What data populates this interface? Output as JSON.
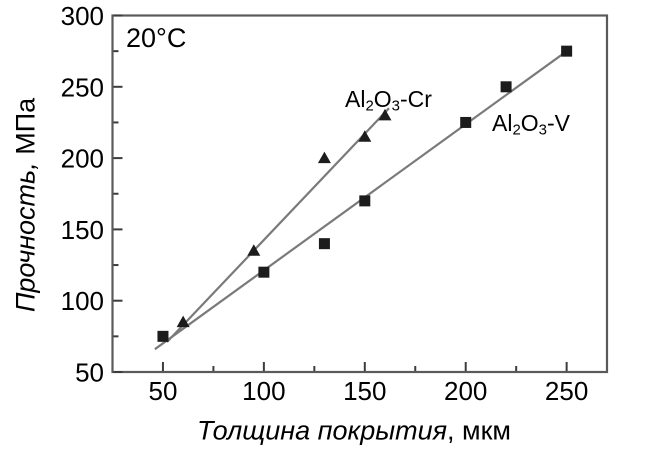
{
  "chart_data": {
    "type": "scatter",
    "title": "",
    "annotation": "20°C",
    "xlabel": "Толщина покрытия, мкм",
    "xlabel_main": "Толщина покрытия",
    "xlabel_unit": ", мкм",
    "ylabel": "Прочность, МПа",
    "ylabel_main": "Прочность,",
    "ylabel_unit": " МПа",
    "x_unit": "мкм",
    "y_unit": "МПа",
    "xlim": [
      25,
      270
    ],
    "ylim": [
      50,
      300
    ],
    "x_ticks": [
      50,
      100,
      150,
      200,
      250
    ],
    "x_minor_ticks": [
      75,
      125,
      175,
      225
    ],
    "y_ticks": [
      50,
      100,
      150,
      200,
      250,
      300
    ],
    "y_minor_ticks": [
      75,
      125,
      175,
      225,
      275
    ],
    "grid": false,
    "legend_position": "inline-labels",
    "series": [
      {
        "name": "Al2O3-Cr",
        "label_parts": [
          "Al",
          "2",
          "O",
          "3",
          "-Cr"
        ],
        "marker": "triangle",
        "x": [
          60,
          95,
          130,
          150,
          160
        ],
        "y": [
          85,
          135,
          200,
          215,
          230
        ],
        "trend_line": {
          "x1": 52,
          "y1": 71,
          "x2": 162,
          "y2": 235
        }
      },
      {
        "name": "Al2O3-V",
        "label_parts": [
          "Al",
          "2",
          "O",
          "3",
          "-V"
        ],
        "marker": "square",
        "x": [
          50,
          100,
          130,
          150,
          200,
          220,
          250
        ],
        "y": [
          75,
          120,
          140,
          170,
          225,
          250,
          275
        ],
        "trend_line": {
          "x1": 46,
          "y1": 66,
          "x2": 252,
          "y2": 277
        }
      }
    ],
    "colors": {
      "marker": "#1c1c1c",
      "trend_line": "#7a7a7a",
      "frame": "#5a5a5a",
      "tick": "#3c3c3c",
      "text": "#000000",
      "background": "#ffffff"
    }
  }
}
